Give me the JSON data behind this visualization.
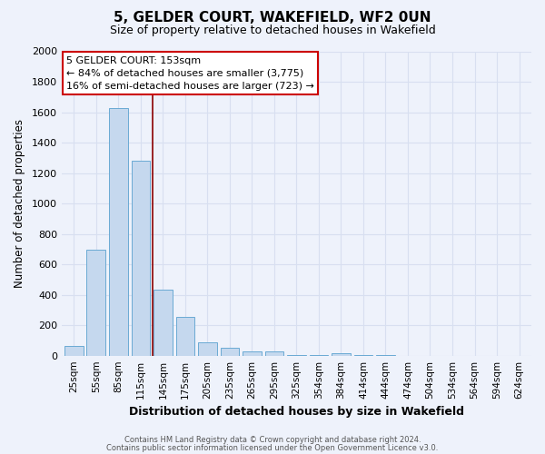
{
  "title": "5, GELDER COURT, WAKEFIELD, WF2 0UN",
  "subtitle": "Size of property relative to detached houses in Wakefield",
  "xlabel": "Distribution of detached houses by size in Wakefield",
  "ylabel": "Number of detached properties",
  "bar_color": "#c5d8ee",
  "bar_edge_color": "#6aaad4",
  "background_color": "#eef2fb",
  "grid_color": "#d8dff0",
  "categories": [
    "25sqm",
    "55sqm",
    "85sqm",
    "115sqm",
    "145sqm",
    "175sqm",
    "205sqm",
    "235sqm",
    "265sqm",
    "295sqm",
    "325sqm",
    "354sqm",
    "384sqm",
    "414sqm",
    "444sqm",
    "474sqm",
    "504sqm",
    "534sqm",
    "564sqm",
    "594sqm",
    "624sqm"
  ],
  "values": [
    65,
    695,
    1625,
    1280,
    435,
    255,
    90,
    52,
    30,
    25,
    5,
    3,
    15,
    3,
    2,
    1,
    1,
    0,
    0,
    0,
    1
  ],
  "ylim": [
    0,
    2000
  ],
  "yticks": [
    0,
    200,
    400,
    600,
    800,
    1000,
    1200,
    1400,
    1600,
    1800,
    2000
  ],
  "vline_x": 3.55,
  "vline_color": "#8b0000",
  "annotation_title": "5 GELDER COURT: 153sqm",
  "annotation_line1": "← 84% of detached houses are smaller (3,775)",
  "annotation_line2": "16% of semi-detached houses are larger (723) →",
  "annotation_box_color": "#ffffff",
  "annotation_box_edge": "#cc0000",
  "footer1": "Contains HM Land Registry data © Crown copyright and database right 2024.",
  "footer2": "Contains public sector information licensed under the Open Government Licence v3.0."
}
